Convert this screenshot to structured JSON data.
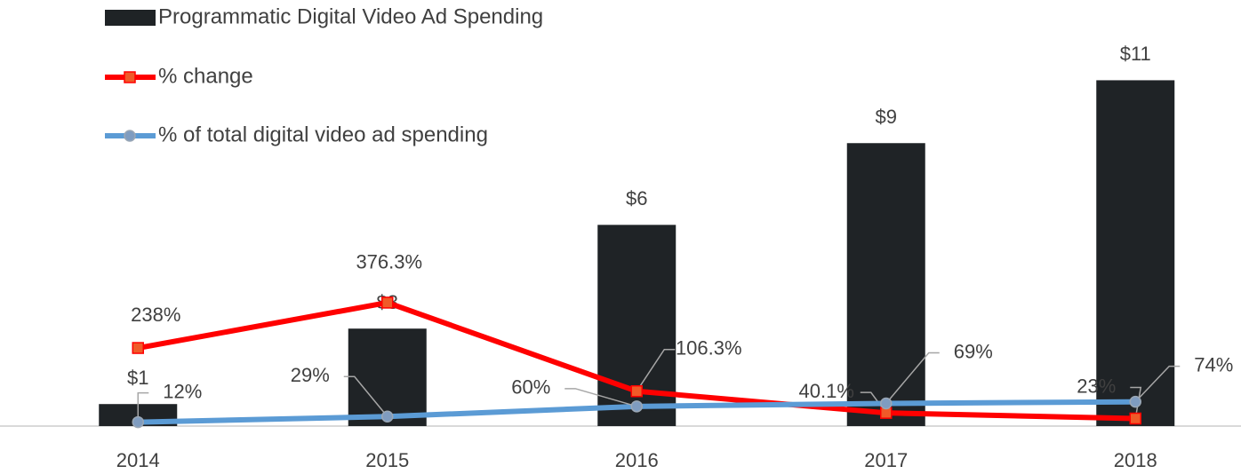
{
  "chart_data": {
    "type": "bar",
    "categories": [
      "2014",
      "2015",
      "2016",
      "2017",
      "2018"
    ],
    "ylim": [
      0,
      12
    ],
    "y2lim": [
      0,
      1150
    ],
    "series": [
      {
        "name": "Programmatic Digital Video Ad Spending",
        "type": "bar",
        "color": "#1f2326",
        "values": [
          0.7,
          3.1,
          6.4,
          9,
          11
        ],
        "value_labels": [
          "$1",
          "$3",
          "$6",
          "$9",
          "$11"
        ]
      },
      {
        "name": "% change",
        "type": "line",
        "axis": "y2",
        "color": "#ff0000",
        "marker": "square",
        "marker_color": "#f05a28",
        "values": [
          238,
          376.3,
          106.3,
          40.1,
          23
        ],
        "value_labels": [
          "238%",
          "376.3%",
          "106.3%",
          "40.1%",
          "23%"
        ]
      },
      {
        "name": "% of total digital video ad spending",
        "type": "line",
        "axis": "y2",
        "color": "#5b9bd5",
        "marker": "circle",
        "marker_color": "#7f9cc0",
        "values": [
          12,
          29,
          60,
          69,
          74
        ],
        "value_labels": [
          "12%",
          "29%",
          "60%",
          "69%",
          "74%"
        ]
      }
    ]
  }
}
